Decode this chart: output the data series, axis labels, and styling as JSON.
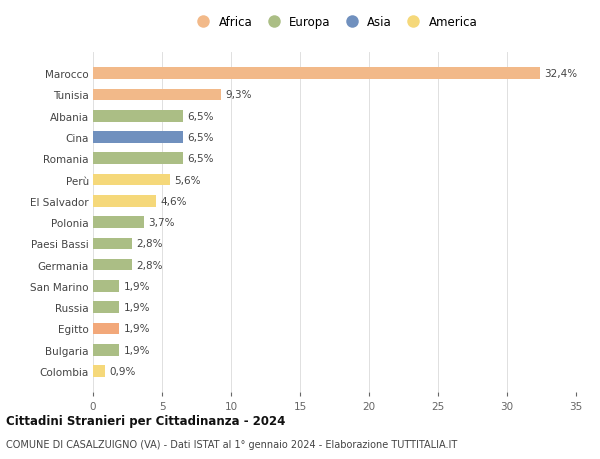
{
  "countries": [
    "Marocco",
    "Tunisia",
    "Albania",
    "Cina",
    "Romania",
    "Perù",
    "El Salvador",
    "Polonia",
    "Paesi Bassi",
    "Germania",
    "San Marino",
    "Russia",
    "Egitto",
    "Bulgaria",
    "Colombia"
  ],
  "values": [
    32.4,
    9.3,
    6.5,
    6.5,
    6.5,
    5.6,
    4.6,
    3.7,
    2.8,
    2.8,
    1.9,
    1.9,
    1.9,
    1.9,
    0.9
  ],
  "labels": [
    "32,4%",
    "9,3%",
    "6,5%",
    "6,5%",
    "6,5%",
    "5,6%",
    "4,6%",
    "3,7%",
    "2,8%",
    "2,8%",
    "1,9%",
    "1,9%",
    "1,9%",
    "1,9%",
    "0,9%"
  ],
  "colors": [
    "#F2B989",
    "#F2B989",
    "#ABBE85",
    "#7090BE",
    "#ABBE85",
    "#F5D87A",
    "#F5D87A",
    "#ABBE85",
    "#ABBE85",
    "#ABBE85",
    "#ABBE85",
    "#ABBE85",
    "#F2A87A",
    "#ABBE85",
    "#F5D87A"
  ],
  "legend_labels": [
    "Africa",
    "Europa",
    "Asia",
    "America"
  ],
  "legend_colors": [
    "#F2B989",
    "#ABBE85",
    "#7090BE",
    "#F5D87A"
  ],
  "xlim": [
    0,
    35
  ],
  "xticks": [
    0,
    5,
    10,
    15,
    20,
    25,
    30,
    35
  ],
  "title": "Cittadini Stranieri per Cittadinanza - 2024",
  "subtitle": "COMUNE DI CASALZUIGNO (VA) - Dati ISTAT al 1° gennaio 2024 - Elaborazione TUTTITALIA.IT",
  "background_color": "#ffffff",
  "grid_color": "#e0e0e0"
}
